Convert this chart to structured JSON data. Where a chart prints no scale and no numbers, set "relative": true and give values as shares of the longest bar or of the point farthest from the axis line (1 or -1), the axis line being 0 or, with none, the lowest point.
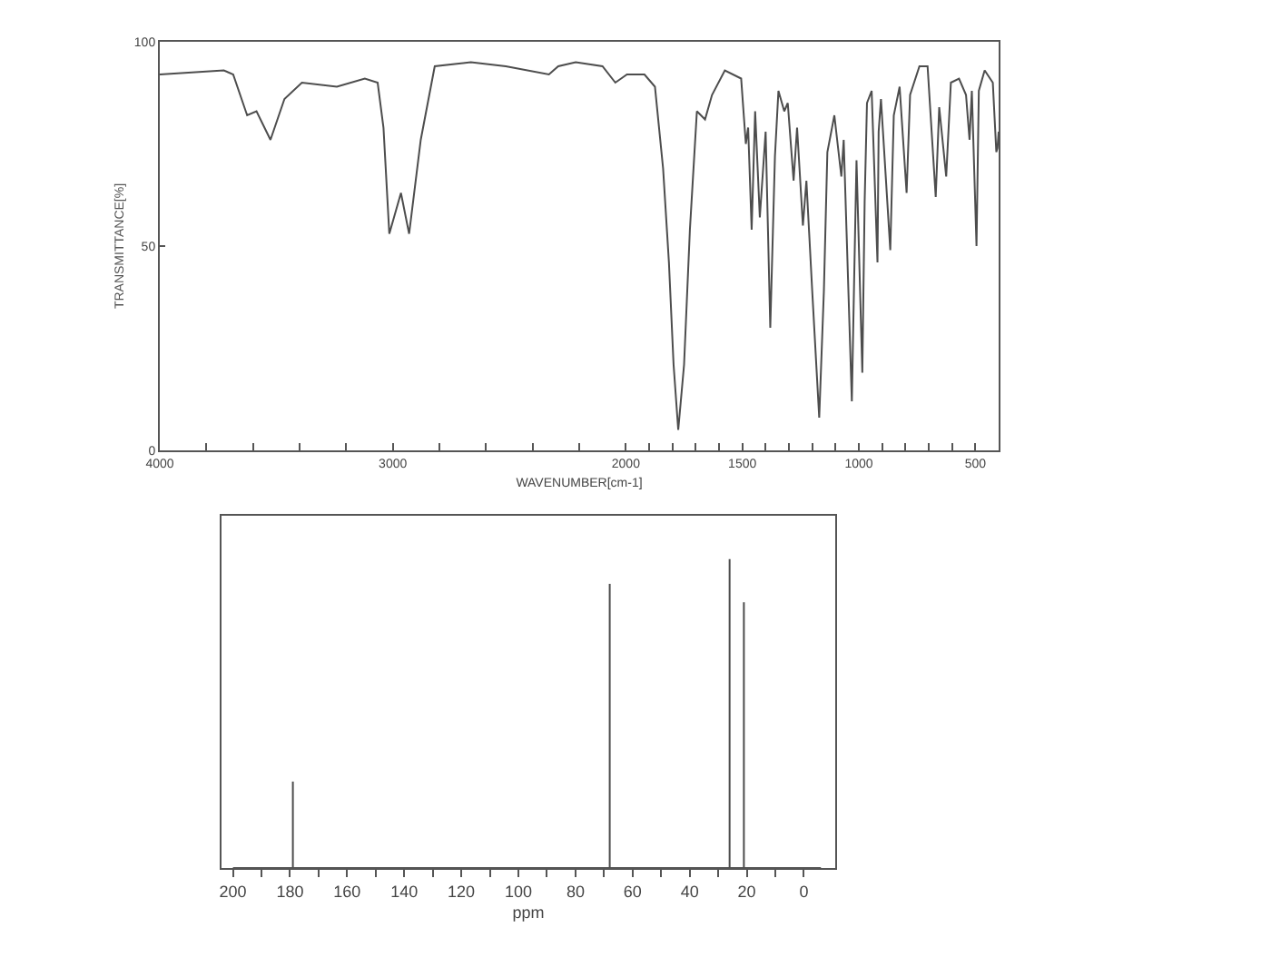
{
  "chart_data": [
    {
      "type": "line",
      "xlabel": "WAVENUMBER[cm-1]",
      "ylabel": "TRANSMITTANCE[%]",
      "color": "#4d4d4d",
      "x": [
        4000,
        3725,
        3685,
        3625,
        3585,
        3525,
        3465,
        3390,
        3240,
        3120,
        3065,
        3040,
        3015,
        2965,
        2930,
        2880,
        2820,
        2665,
        2515,
        2330,
        2290,
        2215,
        2100,
        2045,
        1995,
        1920,
        1875,
        1840,
        1815,
        1795,
        1775,
        1750,
        1725,
        1695,
        1660,
        1630,
        1575,
        1505,
        1485,
        1475,
        1460,
        1445,
        1425,
        1400,
        1380,
        1360,
        1345,
        1320,
        1305,
        1280,
        1265,
        1240,
        1225,
        1200,
        1170,
        1150,
        1135,
        1105,
        1075,
        1065,
        1030,
        1020,
        1010,
        985,
        975,
        965,
        945,
        920,
        915,
        905,
        865,
        850,
        825,
        795,
        780,
        740,
        705,
        670,
        655,
        625,
        605,
        570,
        540,
        525,
        515,
        495,
        485,
        460,
        425,
        410,
        405,
        400
      ],
      "values": [
        92,
        93,
        92,
        82,
        83,
        76,
        86,
        90,
        89,
        91,
        90,
        79,
        53,
        63,
        53,
        76,
        94,
        95,
        94,
        92,
        94,
        95,
        94,
        90,
        92,
        92,
        89,
        69,
        46,
        21,
        5,
        21,
        54,
        83,
        81,
        87,
        93,
        91,
        75,
        79,
        54,
        83,
        57,
        78,
        30,
        72,
        88,
        83,
        85,
        66,
        79,
        55,
        66,
        39,
        8,
        39,
        73,
        82,
        67,
        76,
        12,
        42,
        71,
        19,
        61,
        85,
        88,
        46,
        78,
        86,
        49,
        82,
        89,
        63,
        87,
        94,
        94,
        62,
        84,
        67,
        90,
        91,
        87,
        76,
        88,
        50,
        88,
        93,
        90,
        73,
        74,
        78
      ],
      "xlim": [
        4000,
        400
      ],
      "ylim": [
        0,
        100
      ],
      "xticks": [
        4000,
        {
          "value": 3800,
          "label": null
        },
        {
          "value": 3600,
          "label": null
        },
        {
          "value": 3400,
          "label": null
        },
        {
          "value": 3200,
          "label": null
        },
        3000,
        {
          "value": 2800,
          "label": null
        },
        {
          "value": 2600,
          "label": null
        },
        {
          "value": 2400,
          "label": null
        },
        {
          "value": 2200,
          "label": null
        },
        2000,
        {
          "value": 1900,
          "label": null
        },
        {
          "value": 1800,
          "label": null
        },
        {
          "value": 1700,
          "label": null
        },
        {
          "value": 1600,
          "label": null
        },
        1500,
        {
          "value": 1400,
          "label": null
        },
        {
          "value": 1300,
          "label": null
        },
        {
          "value": 1200,
          "label": null
        },
        {
          "value": 1100,
          "label": null
        },
        1000,
        {
          "value": 900,
          "label": null
        },
        {
          "value": 800,
          "label": null
        },
        {
          "value": 700,
          "label": null
        },
        {
          "value": 600,
          "label": null
        },
        500,
        {
          "value": 400,
          "label": null
        }
      ],
      "yticks": [
        0,
        50,
        100
      ]
    },
    {
      "type": "line",
      "xlabel": "ppm",
      "color": "#4d4d4d",
      "relative": true,
      "x": [
        200,
        179,
        179,
        179,
        68,
        68,
        68,
        26,
        26,
        26,
        21,
        21,
        21,
        -6
      ],
      "values": [
        0,
        0,
        0.28,
        0,
        0,
        0.92,
        0,
        0,
        1,
        0,
        0,
        0.86,
        0,
        0
      ],
      "xlim": [
        204,
        -11
      ],
      "xticks": [
        200,
        {
          "value": 190,
          "label": null
        },
        180,
        {
          "value": 170,
          "label": null
        },
        160,
        {
          "value": 150,
          "label": null
        },
        140,
        {
          "value": 130,
          "label": null
        },
        120,
        {
          "value": 110,
          "label": null
        },
        100,
        {
          "value": 90,
          "label": null
        },
        80,
        {
          "value": 70,
          "label": null
        },
        60,
        {
          "value": 50,
          "label": null
        },
        40,
        {
          "value": 30,
          "label": null
        },
        20,
        {
          "value": 10,
          "label": null
        },
        0
      ]
    }
  ]
}
